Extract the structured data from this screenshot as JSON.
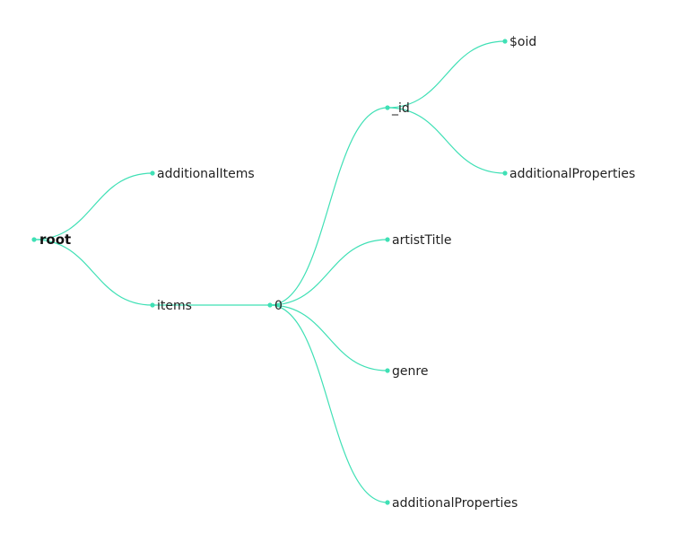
{
  "tree": {
    "accent_color": "#3fe0b5",
    "nodes": {
      "root": "root",
      "additionalItems": "additionalItems",
      "items": "items",
      "zero": "0",
      "id": "_id",
      "oid": "$oid",
      "id_additionalProperties": "additionalProperties",
      "artistTitle": "artistTitle",
      "genre": "genre",
      "zero_additionalProperties": "additionalProperties"
    }
  }
}
